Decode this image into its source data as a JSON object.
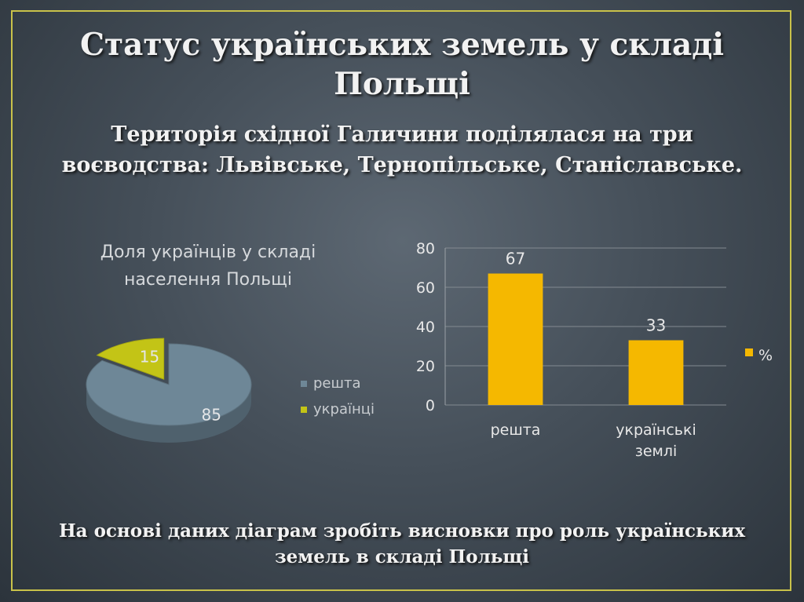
{
  "slide": {
    "title": "Статус українських земель у складі Польщі",
    "subtitle": "Територія східної Галичини поділялася на три воєводства: Львівське, Тернопільське, Станіславське.",
    "footer": "На основі даних діаграм зробіть висновки про роль українських земель в складі Польщі"
  },
  "chart_data": [
    {
      "type": "pie",
      "title_lines": [
        "Доля українців у складі",
        "населення Польщі"
      ],
      "slices": [
        {
          "label": "решта",
          "value": 85,
          "color": "#6e8797"
        },
        {
          "label": "українці",
          "value": 15,
          "color": "#c3c416"
        }
      ],
      "legend_position": "right"
    },
    {
      "type": "bar",
      "categories": [
        "решта",
        "українські землі"
      ],
      "category_lines": [
        [
          "решта"
        ],
        [
          "українські",
          "землі"
        ]
      ],
      "series": [
        {
          "name": "%",
          "values": [
            67,
            33
          ],
          "color": "#f5b800"
        }
      ],
      "ylim": [
        0,
        80
      ],
      "yticks": [
        0,
        20,
        40,
        60,
        80
      ],
      "grid": true,
      "legend_position": "right"
    }
  ]
}
